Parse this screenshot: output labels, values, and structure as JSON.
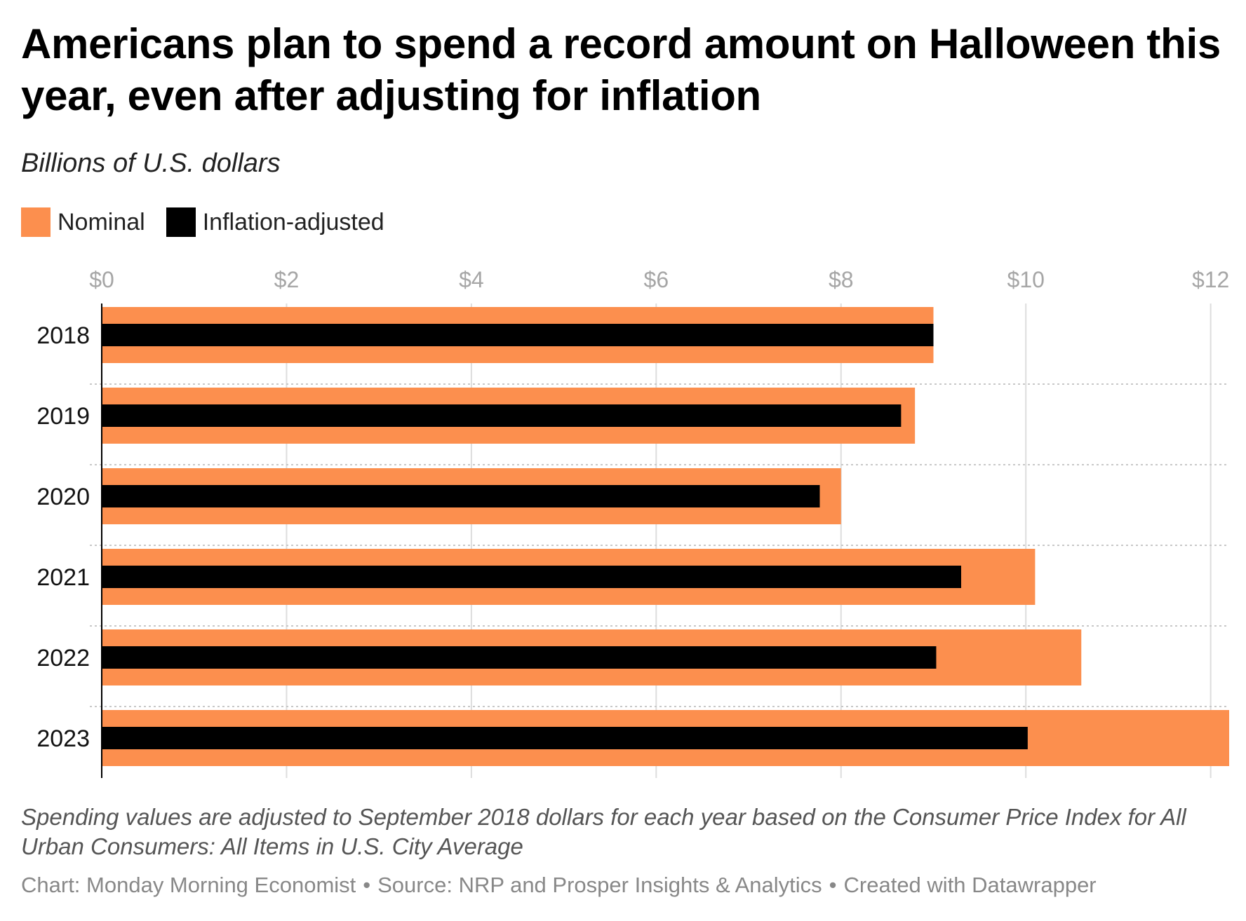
{
  "title": "Americans plan to spend a record amount on Halloween this year, even after adjusting for inflation",
  "subtitle": "Billions of U.S. dollars",
  "legend": [
    {
      "label": "Nominal",
      "color": "#FC8F4E"
    },
    {
      "label": "Inflation-adjusted",
      "color": "#000000"
    }
  ],
  "notes": "Spending values are adjusted to September 2018 dollars for each year based on the Consumer Price Index for All Urban Consumers: All Items in U.S. City Average",
  "footer": {
    "chart": "Chart: Monday Morning Economist",
    "source": "Source: NRP and Prosper Insights & Analytics",
    "tool": "Created with Datawrapper"
  },
  "chart_data": {
    "type": "bar",
    "orientation": "horizontal",
    "categories": [
      "2018",
      "2019",
      "2020",
      "2021",
      "2022",
      "2023"
    ],
    "series": [
      {
        "name": "Nominal",
        "color": "#FC8F4E",
        "values": [
          9.0,
          8.8,
          8.0,
          10.1,
          10.6,
          12.2
        ]
      },
      {
        "name": "Inflation-adjusted",
        "color": "#000000",
        "values": [
          9.0,
          8.65,
          7.77,
          9.3,
          9.03,
          10.02
        ]
      }
    ],
    "xlim": [
      0,
      12.2
    ],
    "x_ticks": [
      0,
      2,
      4,
      6,
      8,
      10,
      12
    ],
    "x_tick_labels": [
      "$0",
      "$2",
      "$4",
      "$6",
      "$8",
      "$10",
      "$12"
    ],
    "grid": true,
    "legend_position": "top-left"
  }
}
